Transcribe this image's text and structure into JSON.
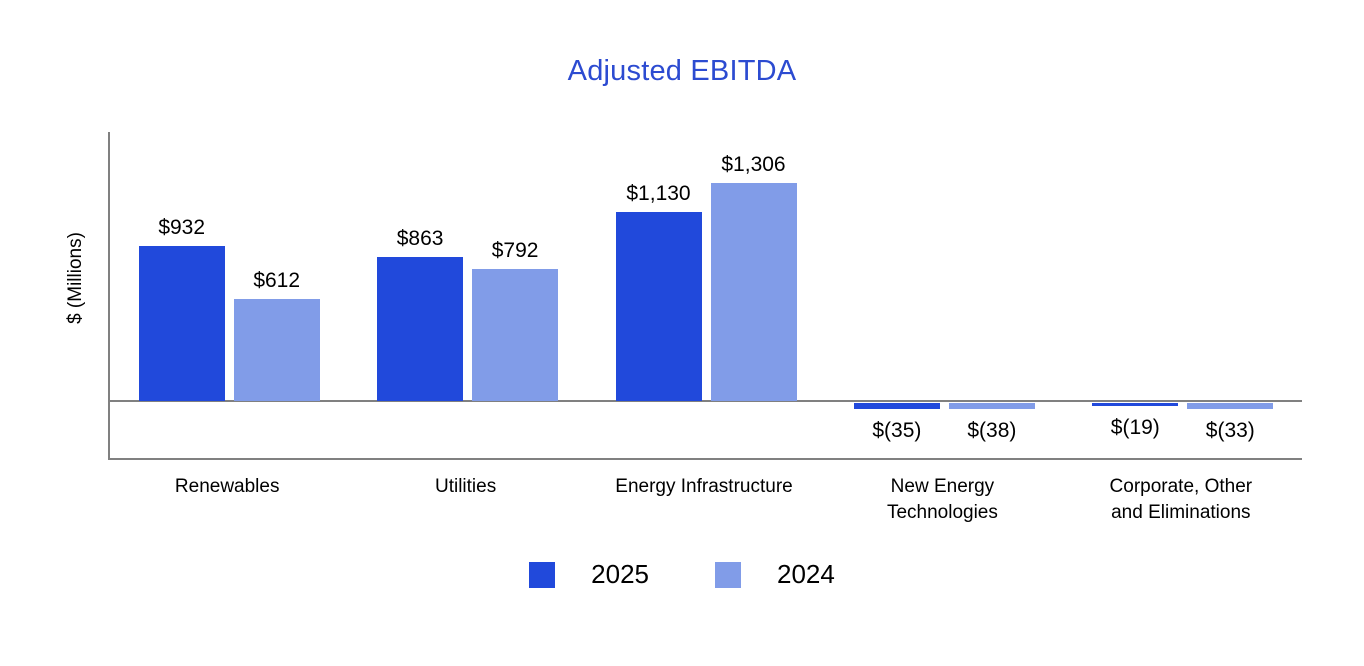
{
  "page": {
    "background": "#ffffff"
  },
  "chart_data": {
    "type": "bar",
    "title": "Adjusted EBITDA",
    "title_color": "#2C4BD1",
    "ylabel": "$ (Millions)",
    "xlabel": "",
    "categories": [
      "Renewables",
      "Utilities",
      "Energy Infrastructure",
      "New Energy\nTechnologies",
      "Corporate, Other\nand Eliminations"
    ],
    "series": [
      {
        "name": "2025",
        "color": "#2149DB",
        "values": [
          932,
          863,
          1130,
          -35,
          -19
        ],
        "labels": [
          "$932",
          "$863",
          "$1,130",
          "$(35)",
          "$(19)"
        ]
      },
      {
        "name": "2024",
        "color": "#819CE8",
        "values": [
          612,
          792,
          1306,
          -38,
          -33
        ],
        "labels": [
          "$612",
          "$792",
          "$1,306",
          "$(38)",
          "$(33)"
        ]
      }
    ],
    "ylim": [
      -340,
      1614
    ],
    "axis_color": "#808080",
    "grid": false,
    "legend_position": "bottom",
    "ticks_visible": false
  }
}
